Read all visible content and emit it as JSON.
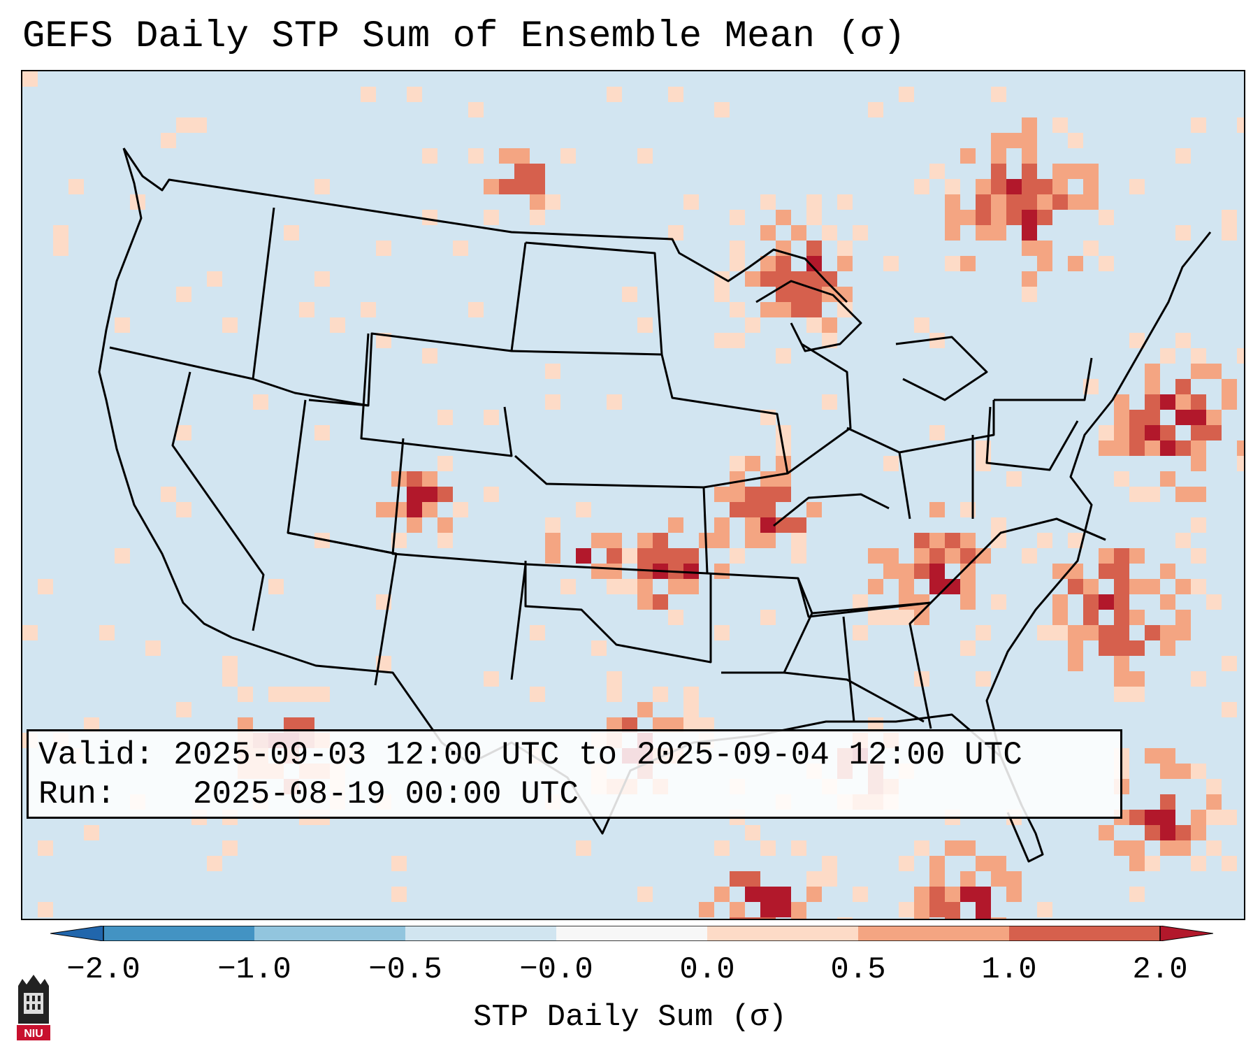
{
  "title": "GEFS Daily STP Sum of Ensemble Mean (σ)",
  "info": {
    "valid_label": "Valid:",
    "valid_value": "2025-09-03 12:00 UTC to 2025-09-04 12:00 UTC",
    "run_label": "Run:",
    "run_value": "2025-08-19 00:00 UTC"
  },
  "colorbar": {
    "label": "STP Daily Sum (σ)",
    "ticks": [
      "−2.0",
      "−1.0",
      "−0.5",
      "−0.0",
      "0.0",
      "0.5",
      "1.0",
      "2.0"
    ],
    "colors": {
      "below_min": "#2166ac",
      "-2_-1": "#4393c3",
      "-1_-0.5": "#92c5de",
      "-0.5_0": "#d1e5f0",
      "neutral": "#f7f7f7",
      "0_0.5": "#fddbc7",
      "0.5_1": "#f4a582",
      "1_2": "#d6604d",
      "above_max": "#b2182b"
    }
  },
  "map": {
    "background": "#d1e5f0",
    "land_outline": "#000000"
  },
  "logo": {
    "text": "NIU",
    "color": "#c8102e"
  }
}
